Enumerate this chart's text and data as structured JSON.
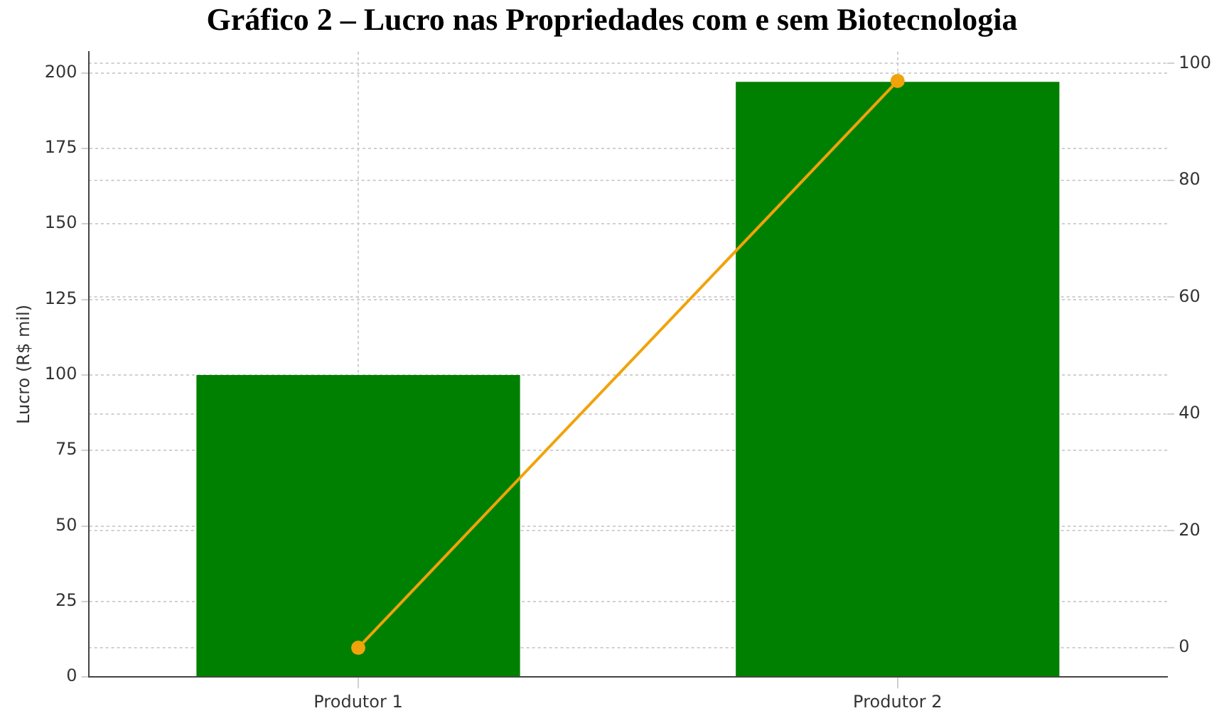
{
  "chart_data": {
    "type": "bar",
    "title": "Gráfico 2 – Lucro nas Propriedades com e sem Biotecnologia",
    "ylabel": "Lucro (R$ mil)",
    "categories": [
      "Produtor 1",
      "Produtor 2"
    ],
    "series": [
      {
        "color": "#008000",
        "values": [
          100,
          197
        ]
      },
      {
        "type": "line",
        "color": "#f0a30a",
        "values": [
          0,
          97
        ],
        "axis": "y2"
      }
    ],
    "ylim": [
      0,
      207
    ],
    "yticks": [
      0,
      25,
      50,
      75,
      100,
      125,
      150,
      175,
      200
    ],
    "y2lim": [
      -5,
      102
    ],
    "y2ticks": [
      0,
      20,
      40,
      60,
      80,
      100
    ],
    "grid": true,
    "marker": "circle"
  }
}
